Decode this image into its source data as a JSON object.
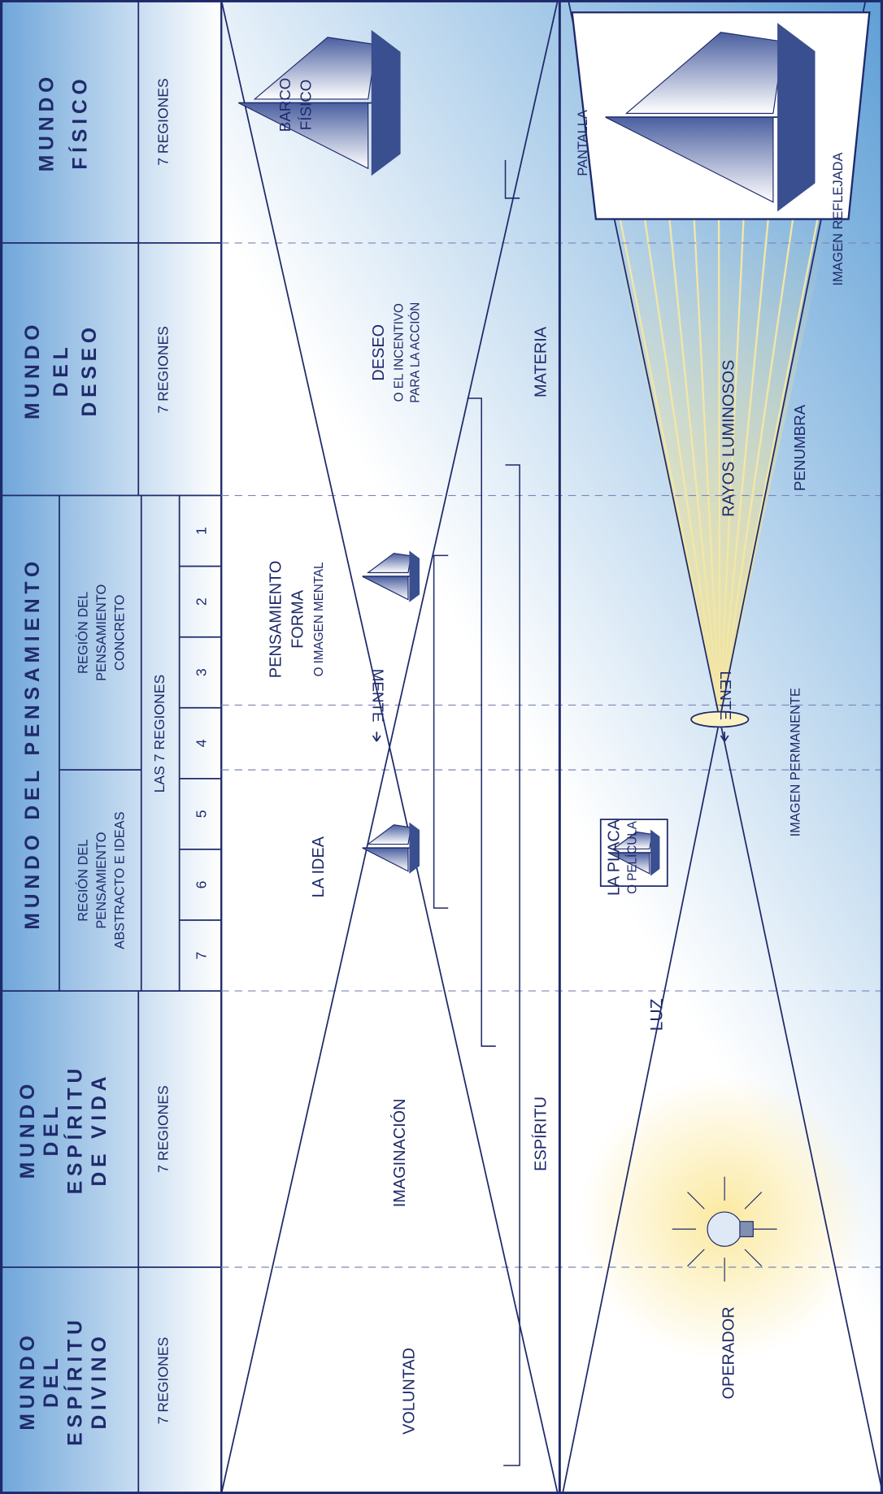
{
  "header": {
    "columns": [
      {
        "title": [
          "MUNDO",
          "DEL",
          "ESPÍRITU",
          "DIVINO"
        ],
        "regions": "7 REGIONES"
      },
      {
        "title": [
          "MUNDO",
          "DEL",
          "ESPÍRITU",
          "DE VIDA"
        ],
        "regions": "7 REGIONES"
      },
      {
        "title": [
          "MUNDO DEL PENSAMIENTO"
        ],
        "subregions": [
          [
            "REGIÓN DEL",
            "PENSAMIENTO",
            "ABSTRACTO E IDEAS"
          ],
          [
            "REGIÓN DEL",
            "PENSAMIENTO",
            "CONCRETO"
          ]
        ],
        "regions": "LAS 7 REGIONES",
        "numbers": [
          7,
          6,
          5,
          4,
          3,
          2,
          1
        ]
      },
      {
        "title": [
          "MUNDO",
          "DEL",
          "DESEO"
        ],
        "regions": "7 REGIONES"
      },
      {
        "title": [
          "MUNDO",
          "FÍSICO"
        ],
        "regions": "7 REGIONES"
      }
    ]
  },
  "upper": {
    "voluntad": "VOLUNTAD",
    "imaginacion": "IMAGINACIÓN",
    "la_idea": "LA IDEA",
    "mente": "MENTE",
    "pensamiento_forma": [
      "PENSAMIENTO",
      "FORMA",
      "O IMAGEN MENTAL"
    ],
    "deseo": [
      "DESEO",
      "O EL INCENTIVO",
      "PARA LA ACCIÓN"
    ],
    "barco_fisico": [
      "BARCO",
      "FÍSICO"
    ],
    "espiritu": "ESPÍRITU",
    "materia": "MATERIA"
  },
  "lower": {
    "operador": "OPERADOR",
    "luz": "LUZ",
    "la_placa": [
      "LA PLACA",
      "O PELÍCULA"
    ],
    "lente": "LENTE",
    "rayos": "RAYOS LUMINOSOS",
    "imagen_permanente": "IMAGEN PERMANENTE",
    "penumbra": "PENUMBRA",
    "imagen_reflejada": "IMAGEN REFLEJADA",
    "pantalla": "PANTALLA"
  }
}
